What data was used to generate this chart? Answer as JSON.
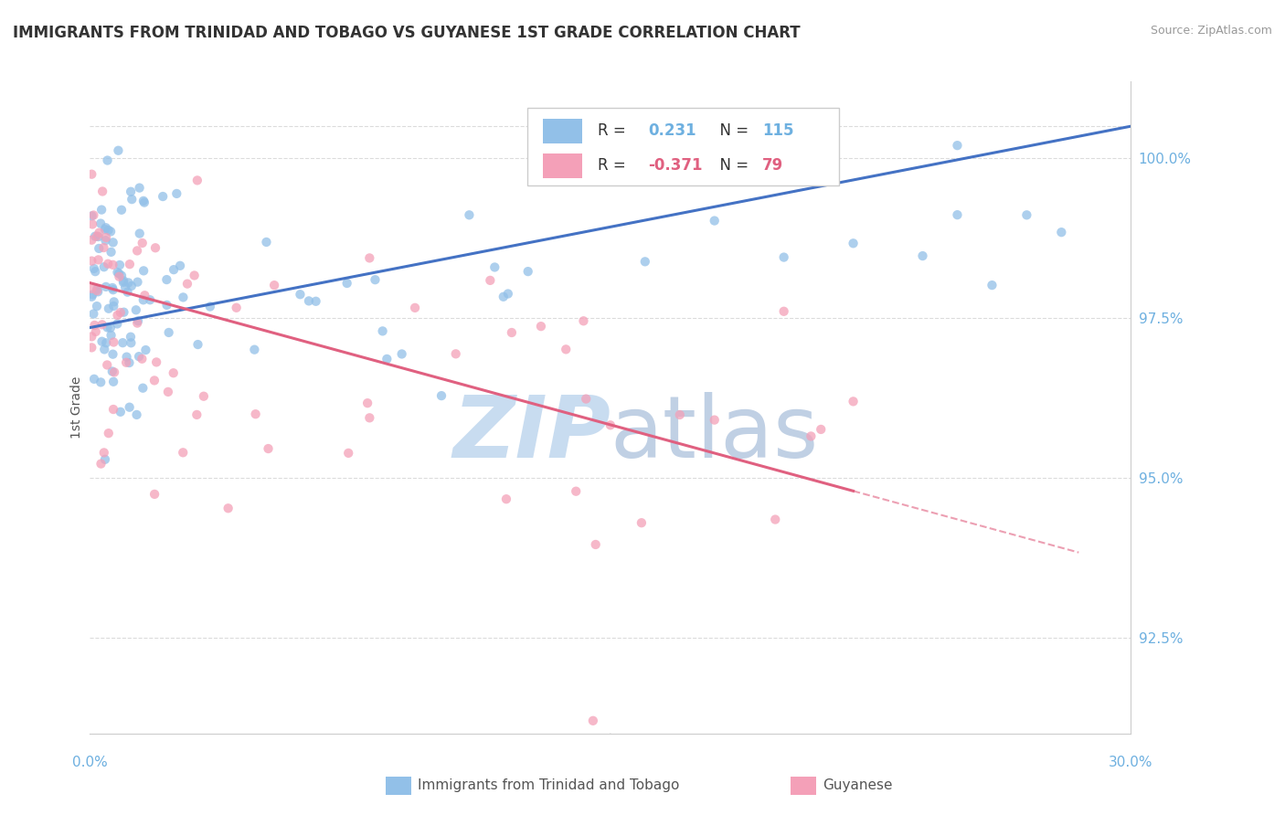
{
  "title": "IMMIGRANTS FROM TRINIDAD AND TOBAGO VS GUYANESE 1ST GRADE CORRELATION CHART",
  "source": "Source: ZipAtlas.com",
  "ylabel": "1st Grade",
  "yticks": [
    92.5,
    95.0,
    97.5,
    100.0
  ],
  "ytick_labels": [
    "92.5%",
    "95.0%",
    "97.5%",
    "100.0%"
  ],
  "xmin": 0.0,
  "xmax": 30.0,
  "ymin": 91.0,
  "ymax": 101.2,
  "color_blue": "#92C0E8",
  "color_pink": "#F4A0B8",
  "color_blue_line": "#4472C4",
  "color_pink_line": "#E06080",
  "color_axis_text": "#6EB0E0",
  "grid_color": "#CCCCCC",
  "watermark_zip_color": "#C8DCF0",
  "watermark_atlas_color": "#C0D0E4"
}
